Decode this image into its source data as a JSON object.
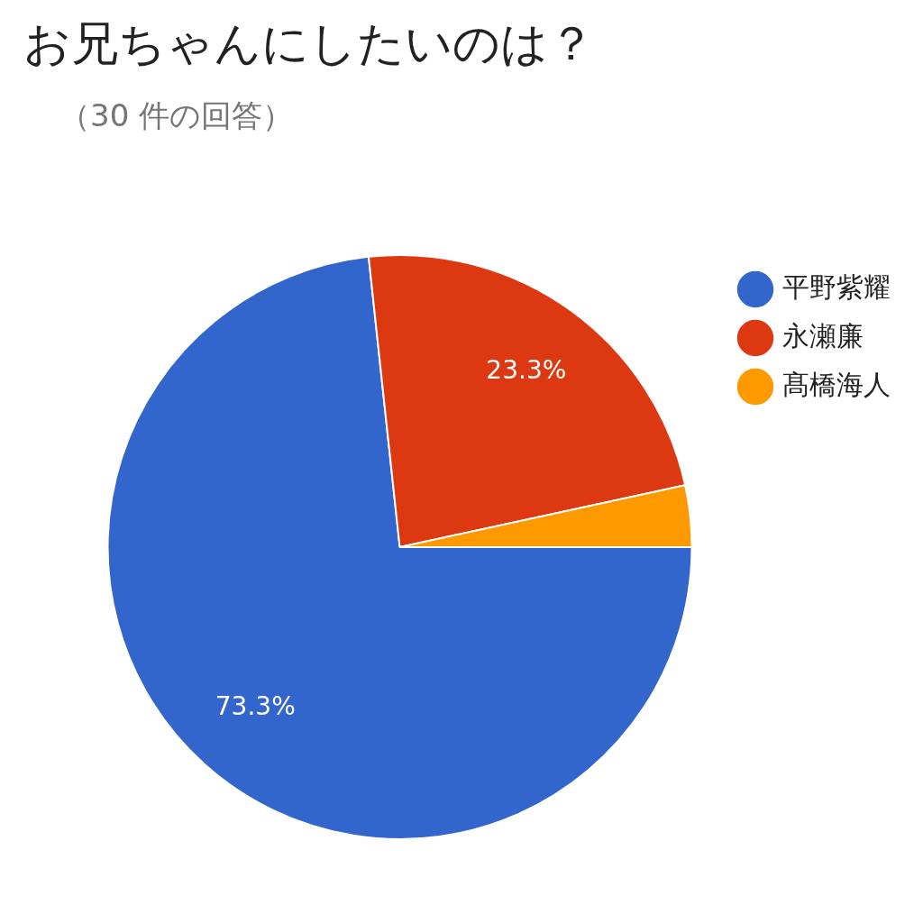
{
  "chart_data": {
    "type": "pie",
    "title": "お兄ちゃんにしたいのは？",
    "subtitle": "（30 件の回答）",
    "categories": [
      "平野紫耀",
      "永瀬廉",
      "髙橋海人"
    ],
    "values": [
      73.3,
      23.3,
      3.4
    ],
    "colors": [
      "#3366cc",
      "#dc3912",
      "#ff9900"
    ],
    "value_labels": [
      "73.3%",
      "23.3%",
      null
    ],
    "legend": "top right"
  }
}
